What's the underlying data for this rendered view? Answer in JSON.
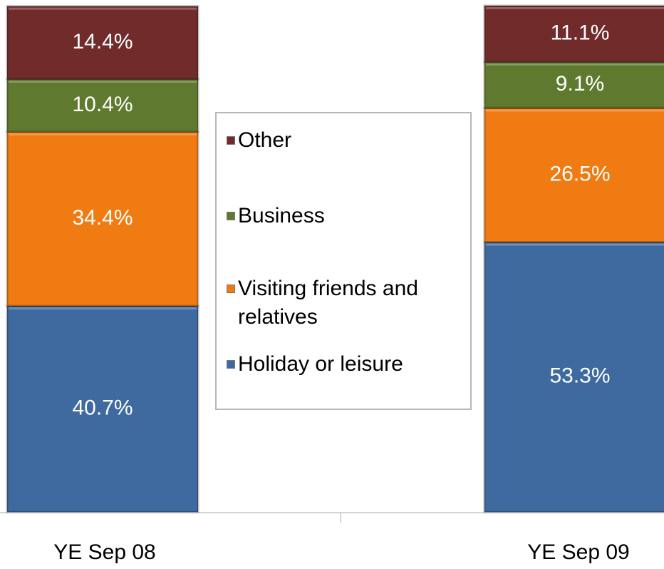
{
  "chart_data": {
    "type": "stacked_bar",
    "categories": [
      "YE Sep 08",
      "YE Sep 09"
    ],
    "ylim": [
      0,
      100
    ],
    "legend": "center",
    "series": [
      {
        "name": "Holiday or leisure",
        "color": "#3f6aa0",
        "values": [
          40.7,
          53.3
        ],
        "value_labels": [
          "40.7%",
          "53.3%"
        ]
      },
      {
        "name": "Visiting friends and relatives",
        "color": "#f07b12",
        "values": [
          34.4,
          26.5
        ],
        "value_labels": [
          "34.4%",
          "26.5%"
        ]
      },
      {
        "name": "Business",
        "color": "#5f7a2e",
        "values": [
          10.4,
          9.1
        ],
        "value_labels": [
          "10.4%",
          "9.1%"
        ]
      },
      {
        "name": "Other",
        "color": "#722b2b",
        "values": [
          14.4,
          11.1
        ],
        "value_labels": [
          "14.4%",
          "11.1%"
        ]
      }
    ]
  }
}
